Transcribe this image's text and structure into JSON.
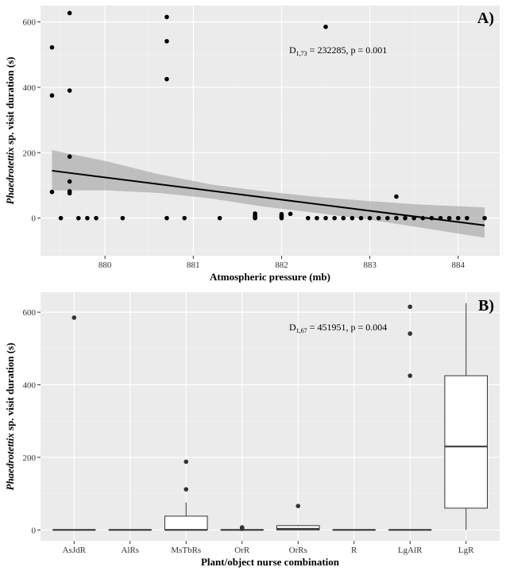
{
  "chart_data": [
    {
      "type": "scatter",
      "panel_label": "A)",
      "xlabel": "Atmospheric pressure (mb)",
      "ylabel_italic": "Phaedrotettix",
      "ylabel_rest": " sp. visit duration (s)",
      "annotation": {
        "prefix": "D",
        "subscript": "1,73",
        "text": " = 232285, p = 0.001"
      },
      "xlim": [
        879.27,
        884.47
      ],
      "ylim": [
        -115,
        650
      ],
      "x_ticks": [
        880,
        881,
        882,
        883,
        884
      ],
      "x_tick_labels": [
        "880",
        "881",
        "882",
        "883",
        "884"
      ],
      "y_ticks": [
        0,
        200,
        400,
        600
      ],
      "y_tick_labels": [
        "0",
        "200",
        "400",
        "600"
      ],
      "grid": true,
      "points": [
        {
          "x": 879.4,
          "y": 522
        },
        {
          "x": 879.4,
          "y": 375
        },
        {
          "x": 879.4,
          "y": 80
        },
        {
          "x": 879.5,
          "y": 0
        },
        {
          "x": 879.6,
          "y": 627
        },
        {
          "x": 879.6,
          "y": 390
        },
        {
          "x": 879.6,
          "y": 188
        },
        {
          "x": 879.6,
          "y": 112
        },
        {
          "x": 879.6,
          "y": 82
        },
        {
          "x": 879.6,
          "y": 76
        },
        {
          "x": 879.7,
          "y": 0
        },
        {
          "x": 879.8,
          "y": 0
        },
        {
          "x": 879.9,
          "y": 0
        },
        {
          "x": 880.2,
          "y": 0
        },
        {
          "x": 880.7,
          "y": 615
        },
        {
          "x": 880.7,
          "y": 541
        },
        {
          "x": 880.7,
          "y": 425
        },
        {
          "x": 880.7,
          "y": 0
        },
        {
          "x": 880.9,
          "y": 0
        },
        {
          "x": 881.3,
          "y": 0
        },
        {
          "x": 881.7,
          "y": 14
        },
        {
          "x": 881.7,
          "y": 7
        },
        {
          "x": 881.7,
          "y": 3
        },
        {
          "x": 881.7,
          "y": 0
        },
        {
          "x": 882.0,
          "y": 12
        },
        {
          "x": 882.0,
          "y": 7
        },
        {
          "x": 882.0,
          "y": 3
        },
        {
          "x": 882.0,
          "y": 0
        },
        {
          "x": 882.1,
          "y": 13
        },
        {
          "x": 882.3,
          "y": 0
        },
        {
          "x": 882.4,
          "y": 0
        },
        {
          "x": 882.5,
          "y": 585
        },
        {
          "x": 882.5,
          "y": 0
        },
        {
          "x": 882.6,
          "y": 0
        },
        {
          "x": 882.7,
          "y": 0
        },
        {
          "x": 882.8,
          "y": 0
        },
        {
          "x": 882.9,
          "y": 0
        },
        {
          "x": 883.0,
          "y": 0
        },
        {
          "x": 883.1,
          "y": 0
        },
        {
          "x": 883.2,
          "y": 0
        },
        {
          "x": 883.3,
          "y": 66
        },
        {
          "x": 883.3,
          "y": 0
        },
        {
          "x": 883.4,
          "y": 0
        },
        {
          "x": 883.5,
          "y": 0
        },
        {
          "x": 883.6,
          "y": 0
        },
        {
          "x": 883.7,
          "y": 0
        },
        {
          "x": 883.8,
          "y": 0
        },
        {
          "x": 883.9,
          "y": 0
        },
        {
          "x": 884.0,
          "y": 0
        },
        {
          "x": 884.1,
          "y": 0
        },
        {
          "x": 884.3,
          "y": 0
        }
      ],
      "fit_line": {
        "x": [
          879.4,
          884.3
        ],
        "y": [
          145,
          -22
        ]
      },
      "confidence_band": {
        "x": [
          879.4,
          880.0,
          880.6,
          881.2,
          881.8,
          882.4,
          883.0,
          883.6,
          884.3
        ],
        "lower": [
          85,
          85,
          77,
          60,
          35,
          16,
          -5,
          -30,
          -60
        ],
        "upper": [
          208,
          175,
          135,
          103,
          82,
          65,
          52,
          41,
          33
        ]
      }
    },
    {
      "type": "boxplot",
      "panel_label": "B)",
      "xlabel": "Plant/object nurse combination",
      "ylabel_italic": "Phaedrotettix",
      "ylabel_rest": " sp. visit duration (s)",
      "annotation": {
        "prefix": "D",
        "subscript": "1,67",
        "text": " = 451951, p = 0.004"
      },
      "ylim": [
        -30,
        655
      ],
      "y_ticks": [
        0,
        200,
        400,
        600
      ],
      "y_tick_labels": [
        "0",
        "200",
        "400",
        "600"
      ],
      "grid": true,
      "categories": [
        "AsJdR",
        "AlRs",
        "MsTbRs",
        "OrR",
        "OrRs",
        "R",
        "LgAlR",
        "LgR"
      ],
      "boxes": [
        {
          "min": 0,
          "q1": 0,
          "median": 0,
          "q3": 0,
          "max": 0,
          "outliers": [
            585
          ]
        },
        {
          "min": 0,
          "q1": 0,
          "median": 0,
          "q3": 0,
          "max": 0,
          "outliers": []
        },
        {
          "min": 0,
          "q1": 0,
          "median": 0,
          "q3": 38,
          "max": 76,
          "outliers": [
            112,
            188
          ]
        },
        {
          "min": 0,
          "q1": 0,
          "median": 0,
          "q3": 0,
          "max": 0,
          "outliers": [
            3,
            7
          ]
        },
        {
          "min": 0,
          "q1": 0,
          "median": 3,
          "q3": 12,
          "max": 14,
          "outliers": [
            66
          ]
        },
        {
          "min": 0,
          "q1": 0,
          "median": 0,
          "q3": 0,
          "max": 0,
          "outliers": []
        },
        {
          "min": 0,
          "q1": 0,
          "median": 0,
          "q3": 0,
          "max": 0,
          "outliers": [
            425,
            541,
            615
          ]
        },
        {
          "min": 0,
          "q1": 60,
          "median": 230,
          "q3": 425,
          "max": 625,
          "outliers": []
        }
      ]
    }
  ],
  "colors": {
    "panel_bg": "#ebebeb",
    "grid_major": "#ffffff",
    "grid_minor": "#f4f4f4",
    "point": "#000000",
    "outlier": "#333333",
    "line": "#000000",
    "band": "#999999"
  }
}
